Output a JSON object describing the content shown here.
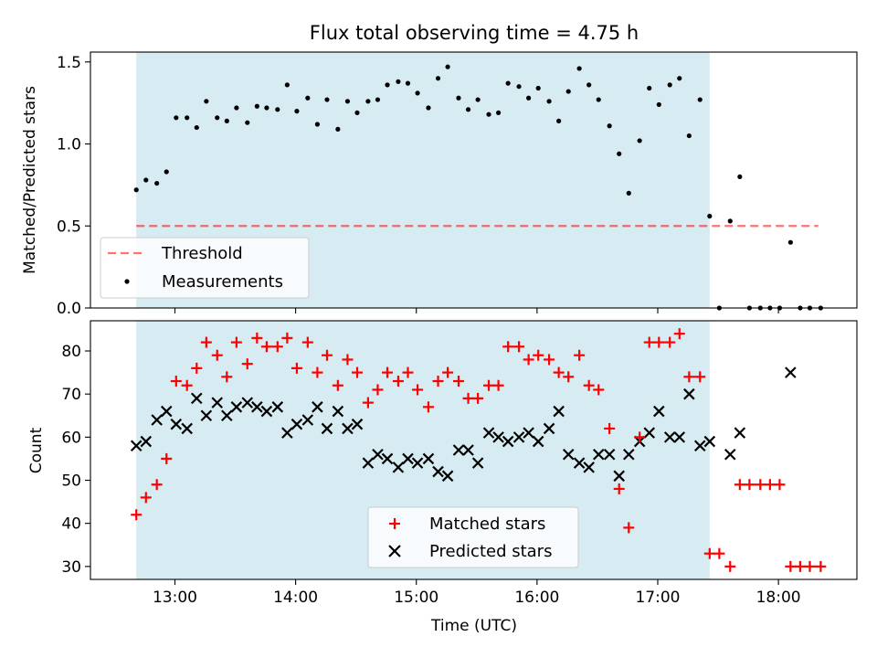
{
  "figure_title": "Flux total observing time = 4.75 h",
  "colors": {
    "band": "#add8e6",
    "threshold": "#ff0000",
    "measurement": "#000000",
    "matched": "#ff0000",
    "predicted": "#000000"
  },
  "chart_data": [
    {
      "type": "scatter",
      "panel": "top",
      "title": "Flux total observing time = 4.75 h",
      "xlabel": "",
      "ylabel": "Matched/Predicted stars",
      "xlim": [
        12.3,
        18.65
      ],
      "ylim": [
        0.0,
        1.56
      ],
      "yticks": [
        0.0,
        0.5,
        1.0,
        1.5
      ],
      "ytick_labels": [
        "0.0",
        "0.5",
        "1.0",
        "1.5"
      ],
      "xticks": [
        13,
        14,
        15,
        16,
        17,
        18
      ],
      "observing_window": [
        12.68,
        17.43
      ],
      "threshold": {
        "name": "Threshold",
        "y": 0.5,
        "x_range": [
          12.68,
          18.33
        ]
      },
      "legend": {
        "placement": "lower-left",
        "entries": [
          "Threshold",
          "Measurements"
        ]
      },
      "series": [
        {
          "name": "Measurements",
          "x": [
            12.68,
            12.76,
            12.85,
            12.93,
            13.01,
            13.1,
            13.18,
            13.26,
            13.35,
            13.43,
            13.51,
            13.6,
            13.68,
            13.76,
            13.85,
            13.93,
            14.01,
            14.1,
            14.18,
            14.26,
            14.35,
            14.43,
            14.51,
            14.6,
            14.68,
            14.76,
            14.85,
            14.93,
            15.01,
            15.1,
            15.18,
            15.26,
            15.35,
            15.43,
            15.51,
            15.6,
            15.68,
            15.76,
            15.85,
            15.93,
            16.01,
            16.1,
            16.18,
            16.26,
            16.35,
            16.43,
            16.51,
            16.6,
            16.68,
            16.76,
            16.85,
            16.93,
            17.01,
            17.1,
            17.18,
            17.26,
            17.35,
            17.43,
            17.51,
            17.6,
            17.68,
            17.76,
            17.85,
            17.93,
            18.01,
            18.1,
            18.18,
            18.26,
            18.35
          ],
          "y": [
            0.72,
            0.78,
            0.76,
            0.83,
            1.16,
            1.16,
            1.1,
            1.26,
            1.16,
            1.14,
            1.22,
            1.13,
            1.23,
            1.22,
            1.21,
            1.36,
            1.2,
            1.28,
            1.12,
            1.27,
            1.09,
            1.26,
            1.19,
            1.26,
            1.27,
            1.36,
            1.38,
            1.37,
            1.31,
            1.22,
            1.4,
            1.47,
            1.28,
            1.21,
            1.27,
            1.18,
            1.19,
            1.37,
            1.35,
            1.28,
            1.34,
            1.26,
            1.14,
            1.32,
            1.46,
            1.36,
            1.27,
            1.11,
            0.94,
            0.7,
            1.02,
            1.34,
            1.24,
            1.36,
            1.4,
            1.05,
            1.27,
            0.56,
            0.0,
            0.53,
            0.8,
            0.0,
            0.0,
            0.0,
            0.0,
            0.4,
            0.0,
            0.0,
            0.0
          ]
        }
      ]
    },
    {
      "type": "scatter",
      "panel": "bottom",
      "title": "",
      "xlabel": "Time (UTC)",
      "ylabel": "Count",
      "xlim": [
        12.3,
        18.65
      ],
      "ylim": [
        27.0,
        87.0
      ],
      "yticks": [
        30,
        40,
        50,
        60,
        70,
        80
      ],
      "ytick_labels": [
        "30",
        "40",
        "50",
        "60",
        "70",
        "80"
      ],
      "xticks": [
        13,
        14,
        15,
        16,
        17,
        18
      ],
      "xtick_labels": [
        "13:00",
        "14:00",
        "15:00",
        "16:00",
        "17:00",
        "18:00"
      ],
      "observing_window": [
        12.68,
        17.43
      ],
      "legend": {
        "placement": "lower-center",
        "entries": [
          "Matched stars",
          "Predicted stars"
        ]
      },
      "series": [
        {
          "name": "Matched stars",
          "marker": "plus",
          "x": [
            12.68,
            12.76,
            12.85,
            12.93,
            13.01,
            13.1,
            13.18,
            13.26,
            13.35,
            13.43,
            13.51,
            13.6,
            13.68,
            13.76,
            13.85,
            13.93,
            14.01,
            14.1,
            14.18,
            14.26,
            14.35,
            14.43,
            14.51,
            14.6,
            14.68,
            14.76,
            14.85,
            14.93,
            15.01,
            15.1,
            15.18,
            15.26,
            15.35,
            15.43,
            15.51,
            15.6,
            15.68,
            15.76,
            15.85,
            15.93,
            16.01,
            16.1,
            16.18,
            16.26,
            16.35,
            16.43,
            16.51,
            16.6,
            16.68,
            16.76,
            16.85,
            16.93,
            17.01,
            17.1,
            17.18,
            17.26,
            17.35,
            17.43,
            17.51,
            17.6,
            17.68,
            17.76,
            17.85,
            17.93,
            18.01,
            18.1,
            18.18,
            18.26,
            18.35
          ],
          "y": [
            42,
            46,
            49,
            55,
            73,
            72,
            76,
            82,
            79,
            74,
            82,
            77,
            83,
            81,
            81,
            83,
            76,
            82,
            75,
            79,
            72,
            78,
            75,
            68,
            71,
            75,
            73,
            75,
            71,
            67,
            73,
            75,
            73,
            69,
            69,
            72,
            72,
            81,
            81,
            78,
            79,
            78,
            75,
            74,
            79,
            72,
            71,
            62,
            48,
            39,
            60,
            82,
            82,
            82,
            84,
            74,
            74,
            33,
            33,
            30,
            49,
            49,
            49,
            49,
            49,
            30,
            30,
            30,
            30
          ]
        },
        {
          "name": "Predicted stars",
          "marker": "x",
          "x": [
            12.68,
            12.76,
            12.85,
            12.93,
            13.01,
            13.1,
            13.18,
            13.26,
            13.35,
            13.43,
            13.51,
            13.6,
            13.68,
            13.76,
            13.85,
            13.93,
            14.01,
            14.1,
            14.18,
            14.26,
            14.35,
            14.43,
            14.51,
            14.6,
            14.68,
            14.76,
            14.85,
            14.93,
            15.01,
            15.1,
            15.18,
            15.26,
            15.35,
            15.43,
            15.51,
            15.6,
            15.68,
            15.76,
            15.85,
            15.93,
            16.01,
            16.1,
            16.18,
            16.26,
            16.35,
            16.43,
            16.51,
            16.6,
            16.68,
            16.76,
            16.85,
            16.93,
            17.01,
            17.1,
            17.18,
            17.26,
            17.35,
            17.43,
            17.6,
            17.68,
            18.1
          ],
          "y": [
            58,
            59,
            64,
            66,
            63,
            62,
            69,
            65,
            68,
            65,
            67,
            68,
            67,
            66,
            67,
            61,
            63,
            64,
            67,
            62,
            66,
            62,
            63,
            54,
            56,
            55,
            53,
            55,
            54,
            55,
            52,
            51,
            57,
            57,
            54,
            61,
            60,
            59,
            60,
            61,
            59,
            62,
            66,
            56,
            54,
            53,
            56,
            56,
            51,
            56,
            59,
            61,
            66,
            60,
            60,
            70,
            58,
            59,
            56,
            61,
            75
          ]
        }
      ]
    }
  ]
}
